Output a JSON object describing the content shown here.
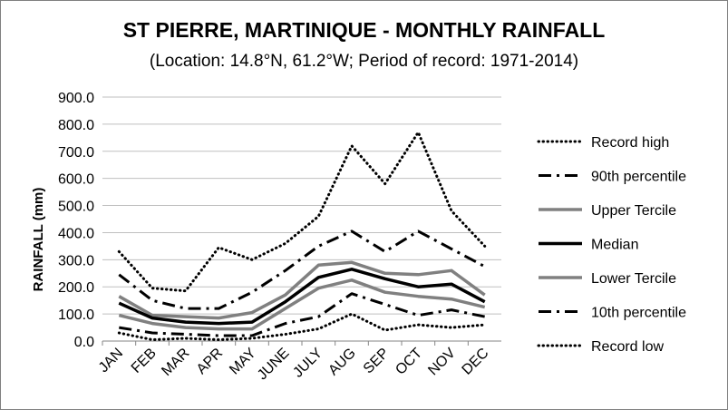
{
  "chart_data": {
    "type": "line",
    "title": "ST PIERRE, MARTINIQUE - MONTHLY RAINFALL",
    "subtitle": "(Location: 14.8°N, 61.2°W; Period of record: 1971-2014)",
    "ylabel": "RAINFALL (mm)",
    "xlabel": "",
    "ylim": [
      0,
      900
    ],
    "yticks": [
      "0.0",
      "100.0",
      "200.0",
      "300.0",
      "400.0",
      "500.0",
      "600.0",
      "700.0",
      "800.0",
      "900.0"
    ],
    "grid": "horizontal",
    "legend_position": "right",
    "categories": [
      "JAN",
      "FEB",
      "MAR",
      "APR",
      "MAY",
      "JUNE",
      "JULY",
      "AUG",
      "SEP",
      "OCT",
      "NOV",
      "DEC"
    ],
    "series": [
      {
        "name": "Record high",
        "style": "dotted",
        "color": "#000000",
        "values": [
          330,
          195,
          185,
          345,
          300,
          360,
          460,
          720,
          580,
          770,
          480,
          350
        ]
      },
      {
        "name": "90th percentile",
        "style": "dashdot",
        "color": "#000000",
        "values": [
          245,
          150,
          120,
          120,
          180,
          260,
          350,
          405,
          330,
          405,
          340,
          275
        ]
      },
      {
        "name": "Upper Tercile",
        "style": "solid",
        "color": "#808080",
        "values": [
          165,
          95,
          90,
          85,
          105,
          170,
          280,
          290,
          250,
          245,
          260,
          170
        ]
      },
      {
        "name": "Median",
        "style": "solid",
        "color": "#000000",
        "values": [
          140,
          85,
          70,
          65,
          70,
          145,
          235,
          265,
          230,
          200,
          210,
          145
        ]
      },
      {
        "name": "Lower Tercile",
        "style": "solid",
        "color": "#808080",
        "values": [
          95,
          65,
          50,
          45,
          45,
          120,
          195,
          225,
          180,
          165,
          155,
          125
        ]
      },
      {
        "name": "10th percentile",
        "style": "dashdot",
        "color": "#000000",
        "values": [
          50,
          30,
          25,
          20,
          20,
          65,
          90,
          175,
          135,
          95,
          115,
          90
        ]
      },
      {
        "name": "Record low",
        "style": "dotted",
        "color": "#000000",
        "values": [
          30,
          5,
          10,
          5,
          10,
          25,
          45,
          100,
          40,
          60,
          50,
          60
        ]
      }
    ]
  }
}
